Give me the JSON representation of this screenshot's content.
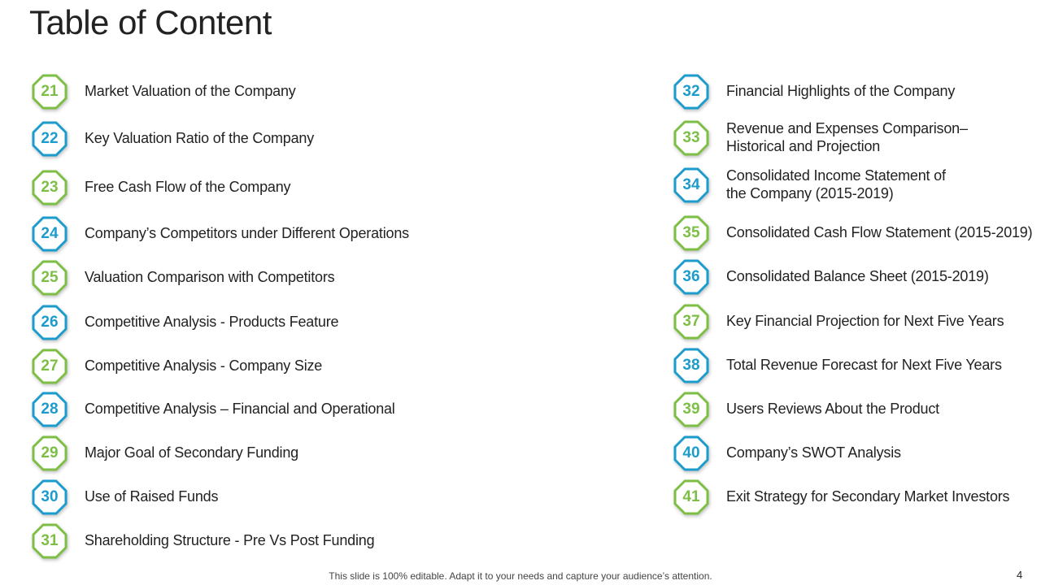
{
  "title": "Table of Content",
  "colors": {
    "green": "#7cbf44",
    "blue": "#1b9ccc"
  },
  "left": [
    {
      "num": "21",
      "label": "Market Valuation of the Company",
      "color": "green"
    },
    {
      "num": "22",
      "label": "Key Valuation Ratio of the Company",
      "color": "blue"
    },
    {
      "num": "23",
      "label": "Free Cash Flow of the Company",
      "color": "green"
    },
    {
      "num": "24",
      "label": "Company’s Competitors under Different Operations",
      "color": "blue"
    },
    {
      "num": "25",
      "label": "Valuation Comparison with Competitors",
      "color": "green"
    },
    {
      "num": "26",
      "label": "Competitive Analysis - Products Feature",
      "color": "blue"
    },
    {
      "num": "27",
      "label": "Competitive Analysis - Company Size",
      "color": "green"
    },
    {
      "num": "28",
      "label": "Competitive Analysis – Financial and Operational",
      "color": "blue"
    },
    {
      "num": "29",
      "label": "Major Goal of Secondary Funding",
      "color": "green"
    },
    {
      "num": "30",
      "label": "Use of Raised Funds",
      "color": "blue"
    },
    {
      "num": "31",
      "label": "Shareholding Structure - Pre Vs Post Funding",
      "color": "green"
    }
  ],
  "right": [
    {
      "num": "32",
      "label": "Financial Highlights of the Company",
      "color": "blue"
    },
    {
      "num": "33",
      "label": "Revenue and Expenses Comparison–\nHistorical and Projection",
      "color": "green"
    },
    {
      "num": "34",
      "label": "Consolidated Income Statement of\nthe Company (2015-2019)",
      "color": "blue"
    },
    {
      "num": "35",
      "label": "Consolidated Cash Flow Statement (2015-2019)",
      "color": "green"
    },
    {
      "num": "36",
      "label": "Consolidated Balance Sheet (2015-2019)",
      "color": "blue"
    },
    {
      "num": "37",
      "label": "Key Financial Projection for Next Five Years",
      "color": "green"
    },
    {
      "num": "38",
      "label": "Total Revenue Forecast for Next Five Years",
      "color": "blue"
    },
    {
      "num": "39",
      "label": "Users Reviews About the Product",
      "color": "green"
    },
    {
      "num": "40",
      "label": "Company’s SWOT Analysis",
      "color": "blue"
    },
    {
      "num": "41",
      "label": "Exit Strategy for Secondary Market Investors",
      "color": "green"
    }
  ],
  "footer": "This slide is 100% editable. Adapt it to your needs and capture your audience’s attention.",
  "page_number": "4"
}
